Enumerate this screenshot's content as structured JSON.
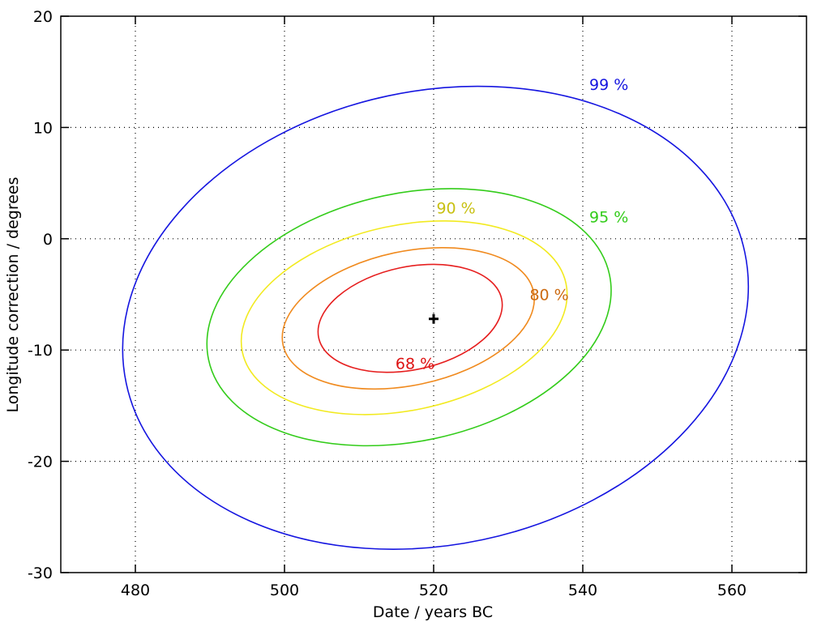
{
  "chart_data": {
    "type": "contour",
    "xlabel": "Date / years BC",
    "ylabel": "Longitude correction / degrees",
    "xlim": [
      470,
      570
    ],
    "ylim": [
      -30,
      20
    ],
    "x_ticks": [
      480,
      500,
      520,
      540,
      560
    ],
    "y_ticks": [
      -30,
      -20,
      -10,
      0,
      10,
      20
    ],
    "grid": true,
    "center": {
      "x": 520,
      "y": -7.2
    },
    "contours": [
      {
        "level": "68 %",
        "color": "#e61e1e",
        "label_color": "#dd1111",
        "center": [
          519.6,
          -7.2
        ],
        "ext_x": [
          504.9,
          529.6
        ],
        "ext_y": [
          -12.0,
          -2.3
        ],
        "label_pos": [
          517.5,
          -11.2
        ]
      },
      {
        "level": "80 %",
        "color": "#f08a1e",
        "label_color": "#cc6a10",
        "center": [
          520.0,
          -7.2
        ],
        "ext_x": [
          499.7,
          533.5
        ],
        "ext_y": [
          -13.5,
          -0.8
        ],
        "label_pos": [
          535.5,
          -5.0
        ]
      },
      {
        "level": "90 %",
        "color": "#f2ea20",
        "label_color": "#c8c012",
        "center": [
          520.0,
          -7.2
        ],
        "ext_x": [
          494.2,
          537.9
        ],
        "ext_y": [
          -15.8,
          1.6
        ],
        "label_pos": [
          523.0,
          2.8
        ]
      },
      {
        "level": "95 %",
        "color": "#33cc1a",
        "label_color": "#33cc1a",
        "center": [
          520.0,
          -7.2
        ],
        "ext_x": [
          489.6,
          543.8
        ],
        "ext_y": [
          -18.6,
          4.5
        ],
        "label_pos": [
          543.5,
          2.0
        ]
      },
      {
        "level": "99 %",
        "color": "#1515e0",
        "label_color": "#1515e0",
        "center": [
          520.0,
          -7.2
        ],
        "ext_x": [
          478.3,
          562.2
        ],
        "ext_y": [
          -27.9,
          13.7
        ],
        "label_pos": [
          543.5,
          13.9
        ]
      }
    ]
  }
}
